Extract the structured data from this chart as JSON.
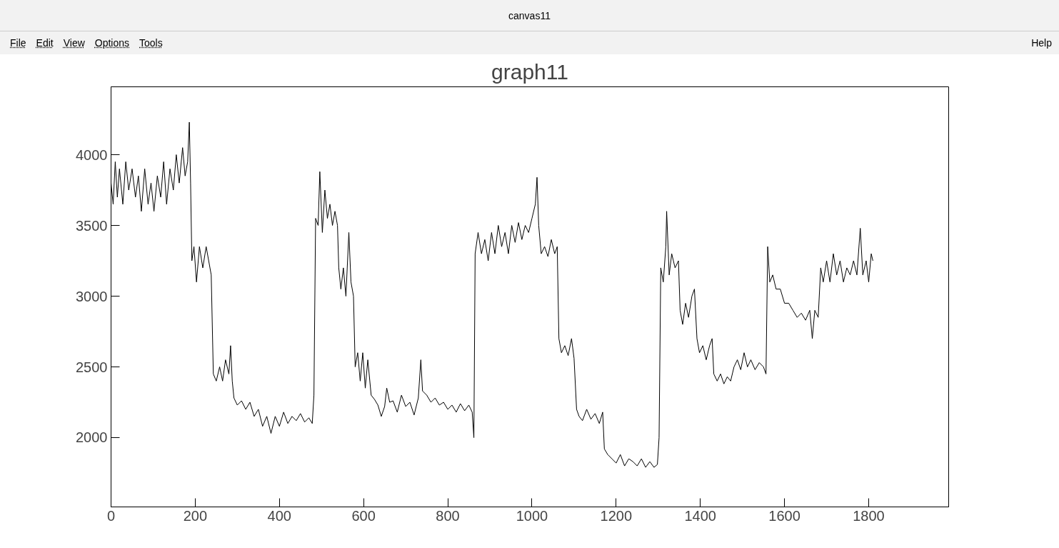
{
  "chart_data": {
    "type": "line",
    "title": "graph11",
    "annotations": [
      "canvas11",
      "File",
      "Edit",
      "View",
      "Options",
      "Tools",
      "Help"
    ],
    "x": [
      0,
      5,
      10,
      15,
      20,
      28,
      35,
      42,
      50,
      58,
      65,
      72,
      80,
      88,
      95,
      102,
      110,
      118,
      125,
      132,
      140,
      148,
      155,
      162,
      170,
      176,
      182,
      186,
      189,
      192,
      197,
      203,
      210,
      218,
      226,
      232,
      238,
      243,
      250,
      258,
      265,
      272,
      280,
      284,
      288,
      292,
      300,
      310,
      320,
      330,
      340,
      350,
      360,
      370,
      380,
      390,
      400,
      410,
      420,
      430,
      440,
      450,
      460,
      470,
      478,
      482,
      486,
      492,
      496,
      502,
      508,
      514,
      520,
      526,
      532,
      538,
      541,
      546,
      552,
      558,
      565,
      570,
      576,
      580,
      586,
      592,
      598,
      604,
      610,
      618,
      626,
      634,
      642,
      650,
      655,
      662,
      670,
      680,
      690,
      700,
      710,
      720,
      730,
      736,
      740,
      750,
      760,
      770,
      780,
      790,
      800,
      810,
      820,
      830,
      840,
      850,
      858,
      862,
      865,
      872,
      880,
      888,
      896,
      904,
      912,
      920,
      928,
      936,
      944,
      952,
      960,
      968,
      976,
      984,
      992,
      1000,
      1008,
      1012,
      1016,
      1022,
      1030,
      1038,
      1046,
      1054,
      1060,
      1064,
      1070,
      1078,
      1086,
      1094,
      1100,
      1106,
      1112,
      1120,
      1130,
      1140,
      1150,
      1160,
      1168,
      1172,
      1180,
      1190,
      1200,
      1210,
      1220,
      1230,
      1240,
      1250,
      1260,
      1270,
      1280,
      1290,
      1298,
      1302,
      1306,
      1312,
      1318,
      1320,
      1326,
      1332,
      1340,
      1348,
      1352,
      1358,
      1365,
      1372,
      1380,
      1386,
      1392,
      1398,
      1406,
      1414,
      1422,
      1428,
      1432,
      1440,
      1448,
      1456,
      1464,
      1472,
      1480,
      1488,
      1496,
      1504,
      1512,
      1520,
      1530,
      1540,
      1550,
      1556,
      1560,
      1565,
      1572,
      1580,
      1590,
      1600,
      1610,
      1620,
      1630,
      1640,
      1650,
      1660,
      1666,
      1672,
      1680,
      1686,
      1692,
      1700,
      1708,
      1716,
      1724,
      1732,
      1740,
      1748,
      1756,
      1764,
      1772,
      1780,
      1786,
      1794,
      1800,
      1806,
      1810
    ],
    "values": [
      3800,
      3650,
      3950,
      3700,
      3900,
      3650,
      3950,
      3750,
      3900,
      3700,
      3850,
      3600,
      3900,
      3650,
      3800,
      3600,
      3850,
      3700,
      3950,
      3650,
      3900,
      3750,
      4000,
      3800,
      4050,
      3850,
      3950,
      4230,
      3800,
      3250,
      3350,
      3100,
      3350,
      3200,
      3350,
      3250,
      3150,
      2450,
      2400,
      2500,
      2400,
      2550,
      2450,
      2650,
      2400,
      2280,
      2230,
      2260,
      2200,
      2250,
      2150,
      2200,
      2080,
      2150,
      2030,
      2150,
      2080,
      2180,
      2100,
      2150,
      2120,
      2170,
      2110,
      2140,
      2100,
      2300,
      3550,
      3500,
      3880,
      3450,
      3750,
      3550,
      3650,
      3500,
      3600,
      3500,
      3200,
      3050,
      3200,
      3000,
      3450,
      3100,
      3000,
      2500,
      2600,
      2400,
      2600,
      2350,
      2550,
      2300,
      2270,
      2230,
      2150,
      2220,
      2350,
      2250,
      2260,
      2180,
      2300,
      2220,
      2250,
      2160,
      2280,
      2550,
      2330,
      2300,
      2250,
      2280,
      2230,
      2250,
      2200,
      2230,
      2180,
      2240,
      2190,
      2230,
      2180,
      2000,
      3300,
      3450,
      3300,
      3400,
      3250,
      3450,
      3300,
      3500,
      3350,
      3450,
      3300,
      3500,
      3380,
      3520,
      3400,
      3500,
      3450,
      3550,
      3650,
      3840,
      3500,
      3300,
      3350,
      3280,
      3400,
      3300,
      3350,
      2700,
      2600,
      2650,
      2580,
      2700,
      2560,
      2200,
      2150,
      2120,
      2200,
      2130,
      2170,
      2100,
      2180,
      1920,
      1880,
      1850,
      1820,
      1880,
      1800,
      1850,
      1830,
      1800,
      1850,
      1790,
      1830,
      1790,
      1810,
      2000,
      3200,
      3100,
      3350,
      3600,
      3150,
      3300,
      3200,
      3250,
      2900,
      2800,
      2950,
      2850,
      3000,
      3050,
      2700,
      2600,
      2650,
      2550,
      2650,
      2700,
      2450,
      2400,
      2450,
      2380,
      2430,
      2400,
      2500,
      2550,
      2480,
      2600,
      2500,
      2550,
      2480,
      2530,
      2500,
      2450,
      3350,
      3100,
      3150,
      3050,
      3050,
      2950,
      2950,
      2900,
      2850,
      2880,
      2830,
      2900,
      2700,
      2900,
      2850,
      3200,
      3100,
      3250,
      3100,
      3300,
      3150,
      3250,
      3100,
      3200,
      3150,
      3250,
      3150,
      3480,
      3150,
      3250,
      3100,
      3300,
      3250
    ],
    "color": "#000000",
    "xlim": [
      0,
      1990
    ],
    "ylim": [
      1510,
      4480
    ],
    "xticks": [
      0,
      200,
      400,
      600,
      800,
      1000,
      1200,
      1400,
      1600,
      1800
    ],
    "yticks": [
      2000,
      2500,
      3000,
      3500,
      4000
    ],
    "grid": false
  }
}
